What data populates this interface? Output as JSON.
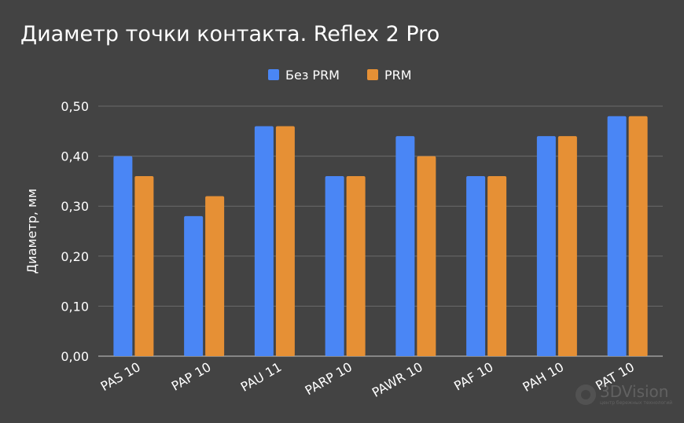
{
  "chart_data": {
    "type": "bar",
    "title": "Диаметр точки контакта. Reflex 2 Pro",
    "xlabel": "",
    "ylabel": "Диаметр, мм",
    "categories": [
      "PAS 10",
      "PAP 10",
      "PAU 11",
      "PARP 10",
      "PAWR 10",
      "PAF 10",
      "PAH 10",
      "PAT 10"
    ],
    "series": [
      {
        "name": "Без PRM",
        "color": "#4a86f5",
        "values": [
          0.4,
          0.28,
          0.46,
          0.36,
          0.44,
          0.36,
          0.44,
          0.48
        ]
      },
      {
        "name": "PRM",
        "color": "#e69035",
        "values": [
          0.36,
          0.32,
          0.46,
          0.36,
          0.4,
          0.36,
          0.44,
          0.48
        ]
      }
    ],
    "ylim": [
      0,
      0.5
    ],
    "yticks": [
      "0,00",
      "0,10",
      "0,20",
      "0,30",
      "0,40",
      "0,50"
    ],
    "grid": true,
    "legend_position": "top-center"
  },
  "watermark": {
    "name": "3DVision",
    "subtitle": "центр бережных технологий"
  }
}
